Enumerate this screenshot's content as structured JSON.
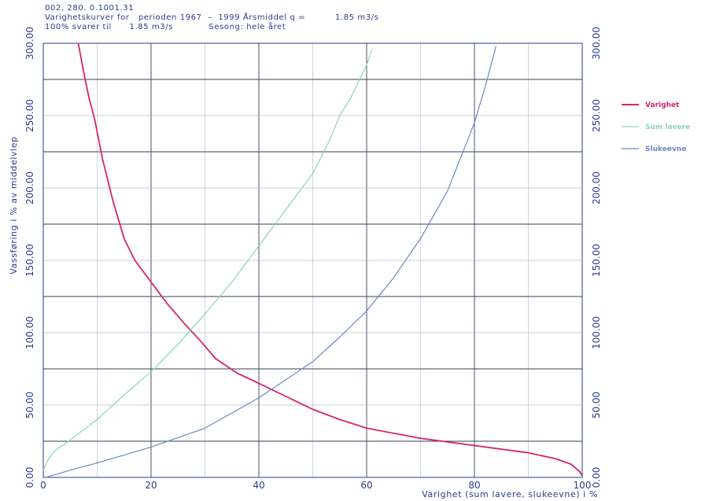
{
  "header": {
    "line1": "002. 280. 0.1001.31",
    "line2": "Varighetskurver for   perioden 1967  –  1999 Årsmiddel q =          1.85 m3/s",
    "line3": "100% svarer til      1.85 m3/s            Sesong: hele året"
  },
  "chart_data": {
    "type": "line",
    "xlabel": "Varighet (sum lavere, slukeevne) i %",
    "ylabel": "Vassføring i % av middelvlep",
    "xlim": [
      0,
      100
    ],
    "ylim": [
      0,
      300
    ],
    "xticks": [
      "0",
      "20",
      "40",
      "60",
      "80",
      "100"
    ],
    "yticks": [
      "0.00",
      "50.00",
      "100.00",
      "150.00",
      "200.00",
      "250.00",
      "300.00"
    ],
    "grid": true,
    "legend_position": "right",
    "series": [
      {
        "name": "Varighet",
        "color": "#d6246e",
        "x": [
          6.5,
          7.5,
          8.5,
          9.5,
          11,
          13,
          15,
          17,
          20,
          23,
          26,
          29,
          32,
          36,
          40,
          45,
          50,
          55,
          60,
          70,
          80,
          90,
          95,
          98,
          99.5,
          100
        ],
        "y": [
          300,
          280,
          262,
          248,
          220,
          190,
          165,
          150,
          135,
          120,
          107,
          95,
          82,
          72,
          65,
          56,
          47,
          40,
          34,
          27,
          22,
          17,
          13,
          9,
          4,
          1
        ]
      },
      {
        "name": "Sum lavere",
        "color": "#8ed4b0",
        "x": [
          0,
          1,
          2,
          5,
          10,
          15,
          20,
          25,
          30,
          35,
          40,
          45,
          50,
          53,
          55,
          57,
          60,
          61
        ],
        "y": [
          5,
          13,
          18,
          26,
          40,
          57,
          73,
          92,
          113,
          135,
          160,
          185,
          210,
          232,
          250,
          262,
          285,
          296
        ]
      },
      {
        "name": "Slukeevne",
        "color": "#6e86c8",
        "x": [
          0.5,
          5,
          10,
          20,
          30,
          40,
          50,
          55,
          60,
          65,
          70,
          75,
          80,
          82,
          84
        ],
        "y": [
          0,
          5,
          10,
          21,
          34,
          55,
          80,
          97,
          115,
          138,
          165,
          198,
          245,
          270,
          298
        ]
      }
    ]
  }
}
